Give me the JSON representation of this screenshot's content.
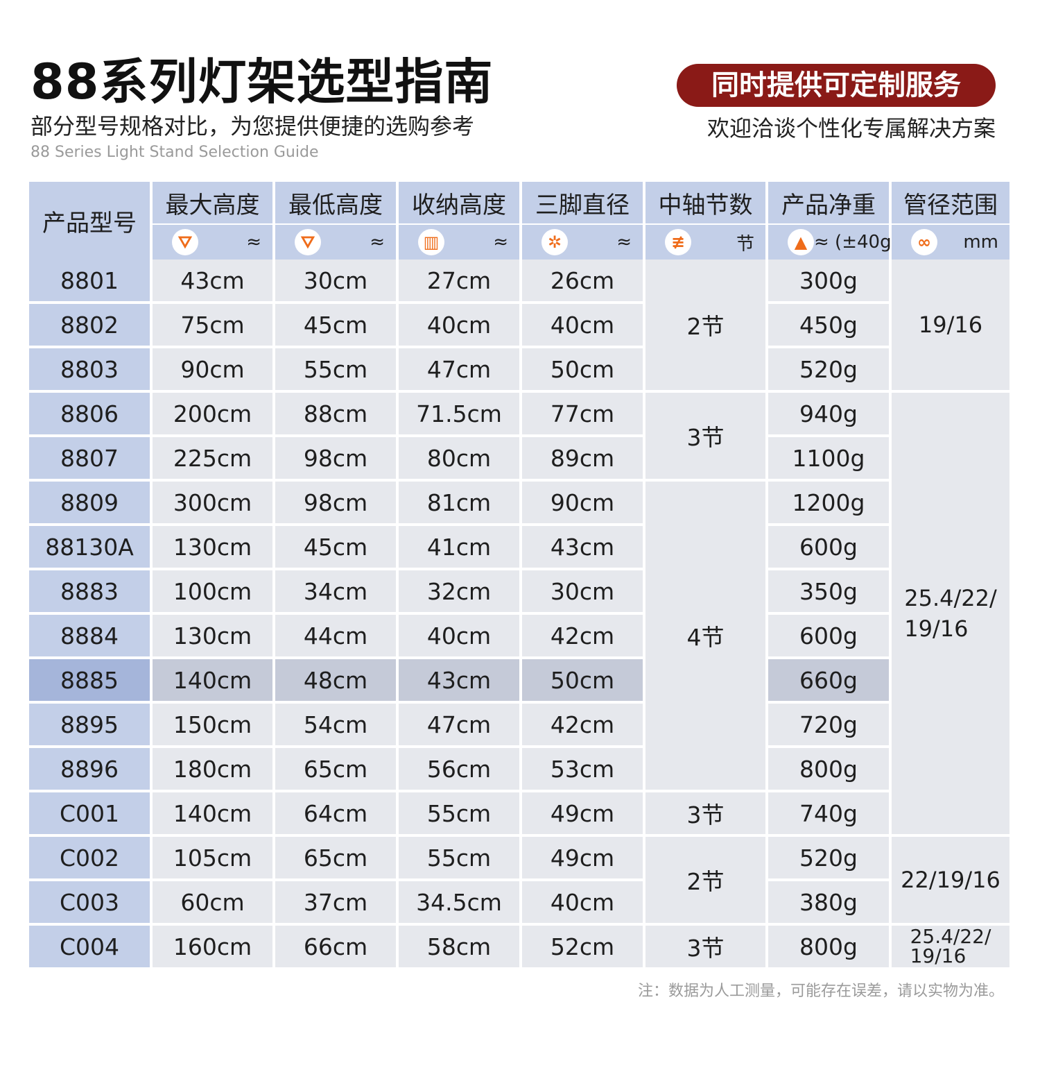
{
  "header": {
    "title": "88系列灯架选型指南",
    "subtitle": "部分型号规格对比，为您提供便捷的选购参考",
    "en_title": "88 Series Light Stand Selection Guide",
    "custom_badge": "同时提供可定制服务",
    "custom_sub": "欢迎洽谈个性化专属解决方案"
  },
  "table": {
    "columns": [
      {
        "label": "产品型号"
      },
      {
        "label": "最大高度",
        "icon": "max-height-tripod-icon",
        "unit": "≈"
      },
      {
        "label": "最低高度",
        "icon": "min-height-tripod-icon",
        "unit": "≈"
      },
      {
        "label": "收纳高度",
        "icon": "folded-height-icon",
        "unit": "≈"
      },
      {
        "label": "三脚直径",
        "icon": "tripod-diameter-icon",
        "unit": "≈"
      },
      {
        "label": "中轴节数",
        "icon": "center-column-sections-icon",
        "unit": "节"
      },
      {
        "label": "产品净重",
        "icon": "weight-icon",
        "unit": "≈ (±40g)"
      },
      {
        "label": "管径范围",
        "icon": "tube-diameter-icon",
        "unit": "mm"
      }
    ],
    "rows": [
      {
        "model": "8801",
        "max": "43cm",
        "min": "30cm",
        "folded": "27cm",
        "diameter": "26cm",
        "weight": "300g"
      },
      {
        "model": "8802",
        "max": "75cm",
        "min": "45cm",
        "folded": "40cm",
        "diameter": "40cm",
        "weight": "450g"
      },
      {
        "model": "8803",
        "max": "90cm",
        "min": "55cm",
        "folded": "47cm",
        "diameter": "50cm",
        "weight": "520g"
      },
      {
        "model": "8806",
        "max": "200cm",
        "min": "88cm",
        "folded": "71.5cm",
        "diameter": "77cm",
        "weight": "940g"
      },
      {
        "model": "8807",
        "max": "225cm",
        "min": "98cm",
        "folded": "80cm",
        "diameter": "89cm",
        "weight": "1100g"
      },
      {
        "model": "8809",
        "max": "300cm",
        "min": "98cm",
        "folded": "81cm",
        "diameter": "90cm",
        "weight": "1200g"
      },
      {
        "model": "88130A",
        "max": "130cm",
        "min": "45cm",
        "folded": "41cm",
        "diameter": "43cm",
        "weight": "600g"
      },
      {
        "model": "8883",
        "max": "100cm",
        "min": "34cm",
        "folded": "32cm",
        "diameter": "30cm",
        "weight": "350g"
      },
      {
        "model": "8884",
        "max": "130cm",
        "min": "44cm",
        "folded": "40cm",
        "diameter": "42cm",
        "weight": "600g"
      },
      {
        "model": "8885",
        "max": "140cm",
        "min": "48cm",
        "folded": "43cm",
        "diameter": "50cm",
        "weight": "660g",
        "highlighted": true
      },
      {
        "model": "8895",
        "max": "150cm",
        "min": "54cm",
        "folded": "47cm",
        "diameter": "42cm",
        "weight": "720g"
      },
      {
        "model": "8896",
        "max": "180cm",
        "min": "65cm",
        "folded": "56cm",
        "diameter": "53cm",
        "weight": "800g"
      },
      {
        "model": "C001",
        "max": "140cm",
        "min": "64cm",
        "folded": "55cm",
        "diameter": "49cm",
        "weight": "740g"
      },
      {
        "model": "C002",
        "max": "105cm",
        "min": "65cm",
        "folded": "55cm",
        "diameter": "49cm",
        "weight": "520g"
      },
      {
        "model": "C003",
        "max": "60cm",
        "min": "37cm",
        "folded": "34.5cm",
        "diameter": "40cm",
        "weight": "380g"
      },
      {
        "model": "C004",
        "max": "160cm",
        "min": "66cm",
        "folded": "58cm",
        "diameter": "52cm",
        "weight": "800g"
      }
    ],
    "sections_groups": [
      {
        "rows": "1-3",
        "value": "2节"
      },
      {
        "rows": "4-5",
        "value": "3节"
      },
      {
        "rows": "6-12",
        "value": "4节"
      },
      {
        "rows": "13",
        "value": "3节"
      },
      {
        "rows": "14-15",
        "value": "2节"
      },
      {
        "rows": "16",
        "value": "3节"
      }
    ],
    "pipe_groups": [
      {
        "rows": "1-3",
        "value": "19/16"
      },
      {
        "rows": "4-13",
        "value": "25.4/22/\n19/16"
      },
      {
        "rows": "14-15",
        "value": "22/19/16"
      },
      {
        "rows": "16",
        "value": "25.4/22/\n19/16"
      }
    ]
  },
  "note": "注：数据为人工测量，可能存在误差，请以实物为准。",
  "colors": {
    "header_bg": "#c3cfe8",
    "body_bg": "#e6e8ed",
    "badge_bg": "#8a1a17",
    "icon_orange": "#ef6c1a"
  }
}
